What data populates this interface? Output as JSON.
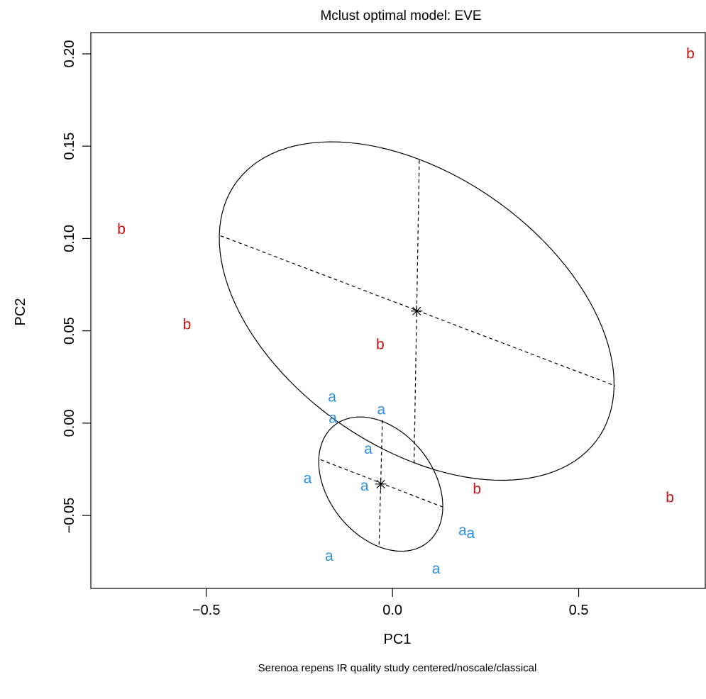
{
  "chart_data": {
    "type": "scatter",
    "title": "Mclust optimal model: EVE",
    "xlabel": "PC1",
    "ylabel": "PC2",
    "subtitle": "Serenoa repens IR quality study  centered/noscale/classical",
    "xlim": [
      -0.81,
      0.84
    ],
    "ylim": [
      -0.0895,
      0.2115
    ],
    "x_ticks": [
      -0.5,
      0.0,
      0.5
    ],
    "x_tick_labels": [
      "−0.5",
      "0.0",
      "0.5"
    ],
    "y_ticks": [
      -0.05,
      0.0,
      0.05,
      0.1,
      0.15,
      0.2
    ],
    "y_tick_labels": [
      "−0.05",
      "0.00",
      "0.05",
      "0.10",
      "0.15",
      "0.20"
    ],
    "grid": false,
    "legend": "none",
    "series": [
      {
        "label": "a",
        "color": "#2b8fe6",
        "points": [
          {
            "x": -0.162,
            "y": 0.0142
          },
          {
            "x": -0.16,
            "y": 0.0026
          },
          {
            "x": -0.03,
            "y": 0.0072
          },
          {
            "x": -0.065,
            "y": -0.014
          },
          {
            "x": -0.228,
            "y": -0.03
          },
          {
            "x": -0.075,
            "y": -0.034
          },
          {
            "x": 0.188,
            "y": -0.0582
          },
          {
            "x": 0.21,
            "y": -0.0597
          },
          {
            "x": -0.17,
            "y": -0.072
          },
          {
            "x": 0.117,
            "y": -0.079
          }
        ]
      },
      {
        "label": "b",
        "color": "#cc1212",
        "points": [
          {
            "x": 0.8,
            "y": 0.2
          },
          {
            "x": -0.728,
            "y": 0.105
          },
          {
            "x": -0.552,
            "y": 0.0533
          },
          {
            "x": -0.033,
            "y": 0.0425
          },
          {
            "x": 0.227,
            "y": -0.0357
          },
          {
            "x": 0.745,
            "y": -0.0404
          }
        ]
      }
    ],
    "cluster_ellipses": [
      {
        "center": [
          0.065,
          0.0607
        ],
        "major_axis": [
          [
            -0.462,
            0.1015
          ],
          [
            0.598,
            0.0202
          ]
        ],
        "minor_axis": [
          [
            0.072,
            0.1425
          ],
          [
            0.058,
            -0.0218
          ]
        ]
      },
      {
        "center": [
          -0.0315,
          -0.033
        ],
        "major_axis": [
          [
            -0.193,
            -0.0198
          ],
          [
            0.14,
            -0.0458
          ]
        ],
        "minor_axis": [
          [
            -0.027,
            0.0017
          ],
          [
            -0.036,
            -0.0662
          ]
        ]
      }
    ]
  }
}
